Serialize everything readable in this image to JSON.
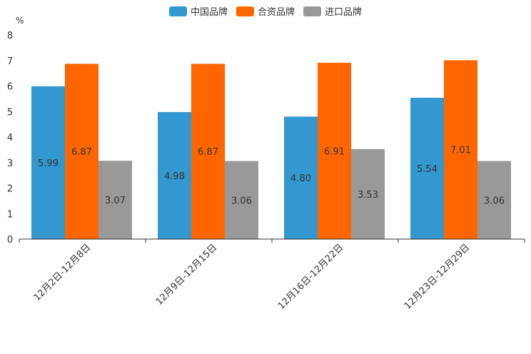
{
  "chart_data": {
    "type": "bar",
    "title": "",
    "ylabel": "%",
    "xlabel": "",
    "ylim": [
      0,
      8
    ],
    "yticks": [
      "0",
      "1",
      "2",
      "3",
      "4",
      "5",
      "6",
      "7",
      "8"
    ],
    "categories": [
      "12月2日-12月8日",
      "12月9日-12月15日",
      "12月16日-12月22日",
      "12月23日-12月29日"
    ],
    "series": [
      {
        "name": "中国品牌",
        "color": "#3398d0",
        "values": [
          5.99,
          4.98,
          4.8,
          5.54
        ],
        "labels": [
          "5.99",
          "4.98",
          "4.80",
          "5.54"
        ]
      },
      {
        "name": "合资品牌",
        "color": "#ff6600",
        "values": [
          6.87,
          6.87,
          6.91,
          7.01
        ],
        "labels": [
          "6.87",
          "6.87",
          "6.91",
          "7.01"
        ]
      },
      {
        "name": "进口品牌",
        "color": "#999999",
        "values": [
          3.07,
          3.06,
          3.53,
          3.06
        ],
        "labels": [
          "3.07",
          "3.06",
          "3.53",
          "3.06"
        ]
      }
    ],
    "legend_position": "top-center"
  }
}
